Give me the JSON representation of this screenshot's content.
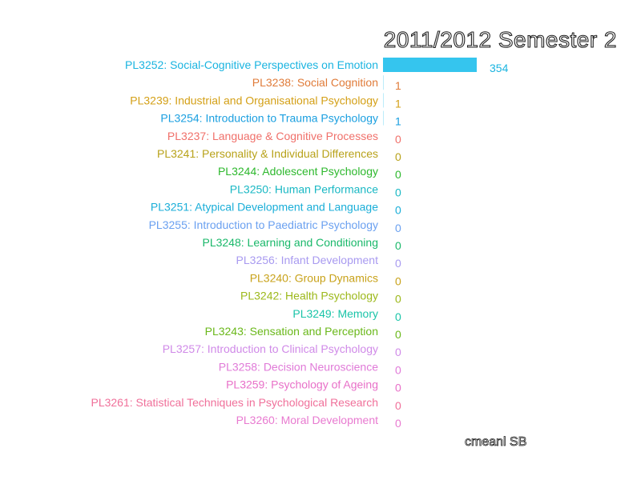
{
  "chart_data": {
    "type": "bar",
    "orientation": "horizontal",
    "title": "2011/2012 Semester 2",
    "footer": "cmeanl SB",
    "xlim": [
      0,
      354
    ],
    "grid": false,
    "categories": [
      "PL3252: Social-Cognitive Perspectives on Emotion",
      "PL3238: Social Cognition",
      "PL3239: Industrial and Organisational Psychology",
      "PL3254: Introduction to Trauma Psychology",
      "PL3237: Language & Cognitive Processes",
      "PL3241: Personality & Individual Differences",
      "PL3244: Adolescent Psychology",
      "PL3250: Human Performance",
      "PL3251: Atypical Development and Language",
      "PL3255: Introduction to Paediatric Psychology",
      "PL3248: Learning and Conditioning",
      "PL3256: Infant Development",
      "PL3240: Group Dynamics",
      "PL3242: Health Psychology",
      "PL3249: Memory",
      "PL3243: Sensation and Perception",
      "PL3257: Introduction to Clinical Psychology",
      "PL3258: Decision Neuroscience",
      "PL3259: Psychology of Ageing",
      "PL3261: Statistical Techniques in Psychological Research",
      "PL3260: Moral Development"
    ],
    "values": [
      354,
      1,
      1,
      1,
      0,
      0,
      0,
      0,
      0,
      0,
      0,
      0,
      0,
      0,
      0,
      0,
      0,
      0,
      0,
      0,
      0
    ],
    "colors": [
      "#1ab4e0",
      "#e07b39",
      "#d4a017",
      "#1a9fe0",
      "#f0706a",
      "#b8a21a",
      "#2db82d",
      "#1ab8c4",
      "#1aaed8",
      "#6aa0f0",
      "#1ab86a",
      "#a89af0",
      "#c8a21a",
      "#9cb81a",
      "#1ac4a8",
      "#6ab81a",
      "#d08ae8",
      "#e07ad8",
      "#e870c8",
      "#f0709a",
      "#e87ad0"
    ],
    "bar_color": "#35c5ee"
  }
}
